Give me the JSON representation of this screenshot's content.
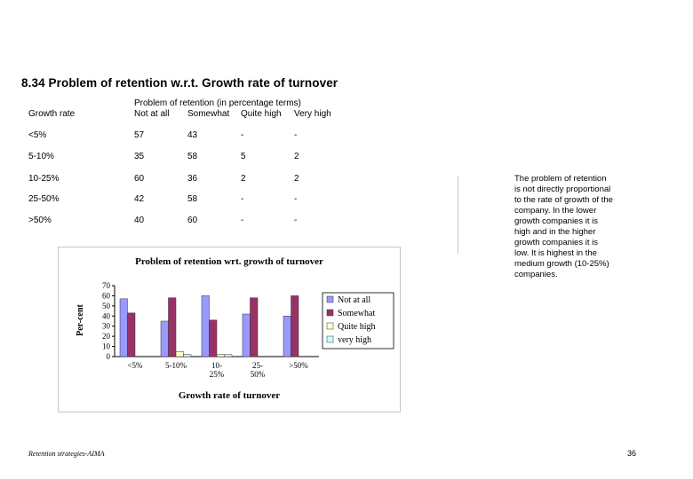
{
  "heading": "8.34 Problem of retention w.r.t. Growth rate of turnover",
  "table": {
    "row_header": "Growth rate",
    "group_header": "Problem of retention (in percentage terms)",
    "columns": [
      "Not at all",
      "Somewhat",
      "Quite high",
      "Very high"
    ],
    "rows": [
      {
        "label": "<5%",
        "values": [
          "57",
          "43",
          "-",
          "-"
        ]
      },
      {
        "label": "5-10%",
        "values": [
          "35",
          "58",
          "5",
          "2"
        ]
      },
      {
        "label": "10-25%",
        "values": [
          "60",
          "36",
          "2",
          "2"
        ]
      },
      {
        "label": "25-50%",
        "values": [
          "42",
          "58",
          "-",
          "-"
        ]
      },
      {
        "label": ">50%",
        "values": [
          "40",
          "60",
          "-",
          "-"
        ]
      }
    ]
  },
  "note": "The problem of retention is not directly proportional to the rate of growth of the company. In the lower growth companies it is high and in the higher growth companies it is low. It is highest in the medium growth (10-25%) companies.",
  "footer": {
    "left": "Retention strategies-AIMA",
    "page_number": "36"
  },
  "chart_data": {
    "type": "bar",
    "title": "Problem of retention wrt. growth of turnover",
    "xlabel": "Growth rate of turnover",
    "ylabel": "Per-cent",
    "categories": [
      "<5%",
      "5-10%",
      "10-25%",
      "25-50%",
      ">50%"
    ],
    "series": [
      {
        "name": "Not at all",
        "values": [
          57,
          35,
          60,
          42,
          40
        ],
        "color": "#9999ff"
      },
      {
        "name": "Somewhat",
        "values": [
          43,
          58,
          36,
          58,
          60
        ],
        "color": "#993366"
      },
      {
        "name": "Quite high",
        "values": [
          0,
          5,
          2,
          0,
          0
        ],
        "color": "#ffffcc"
      },
      {
        "name": "very high",
        "values": [
          0,
          2,
          2,
          0,
          0
        ],
        "color": "#ccffff"
      }
    ],
    "yticks": [
      "0",
      "10",
      "20",
      "30",
      "40",
      "50",
      "60",
      "70"
    ],
    "ylim": [
      0,
      70
    ],
    "legend_position": "right",
    "grid": false
  }
}
